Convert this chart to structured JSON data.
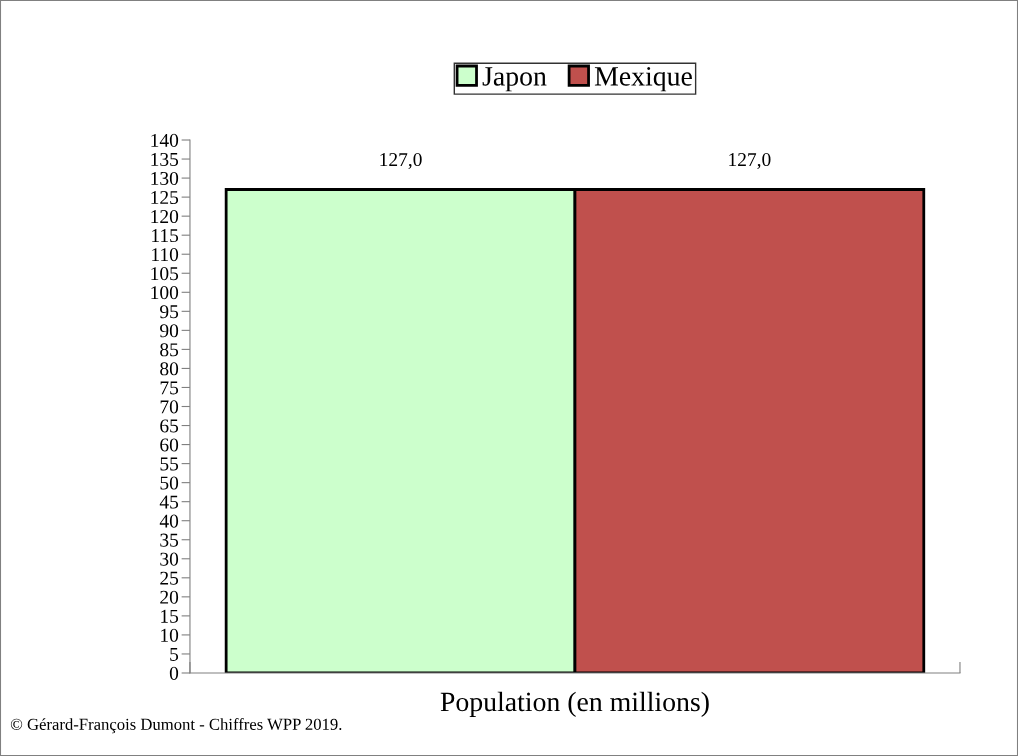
{
  "chart_data": {
    "type": "bar",
    "xlabel": "Population (en millions)",
    "categories": [
      null
    ],
    "series": [
      {
        "name": "Japon",
        "color": "#ccffcc",
        "values": [
          127.0
        ],
        "value_labels": [
          "127,0"
        ]
      },
      {
        "name": "Mexique",
        "color": "#c0504d",
        "values": [
          127.0
        ],
        "value_labels": [
          "127,0"
        ]
      }
    ],
    "ylim": [
      0,
      140
    ],
    "yticks": [
      0,
      5,
      10,
      15,
      20,
      25,
      30,
      35,
      40,
      45,
      50,
      55,
      60,
      65,
      70,
      75,
      80,
      85,
      90,
      95,
      100,
      105,
      110,
      115,
      120,
      125,
      130,
      135,
      140
    ],
    "legend": "top",
    "grid": false,
    "annotations": [
      "© Gérard-François Dumont - Chiffres WPP 2019."
    ]
  }
}
